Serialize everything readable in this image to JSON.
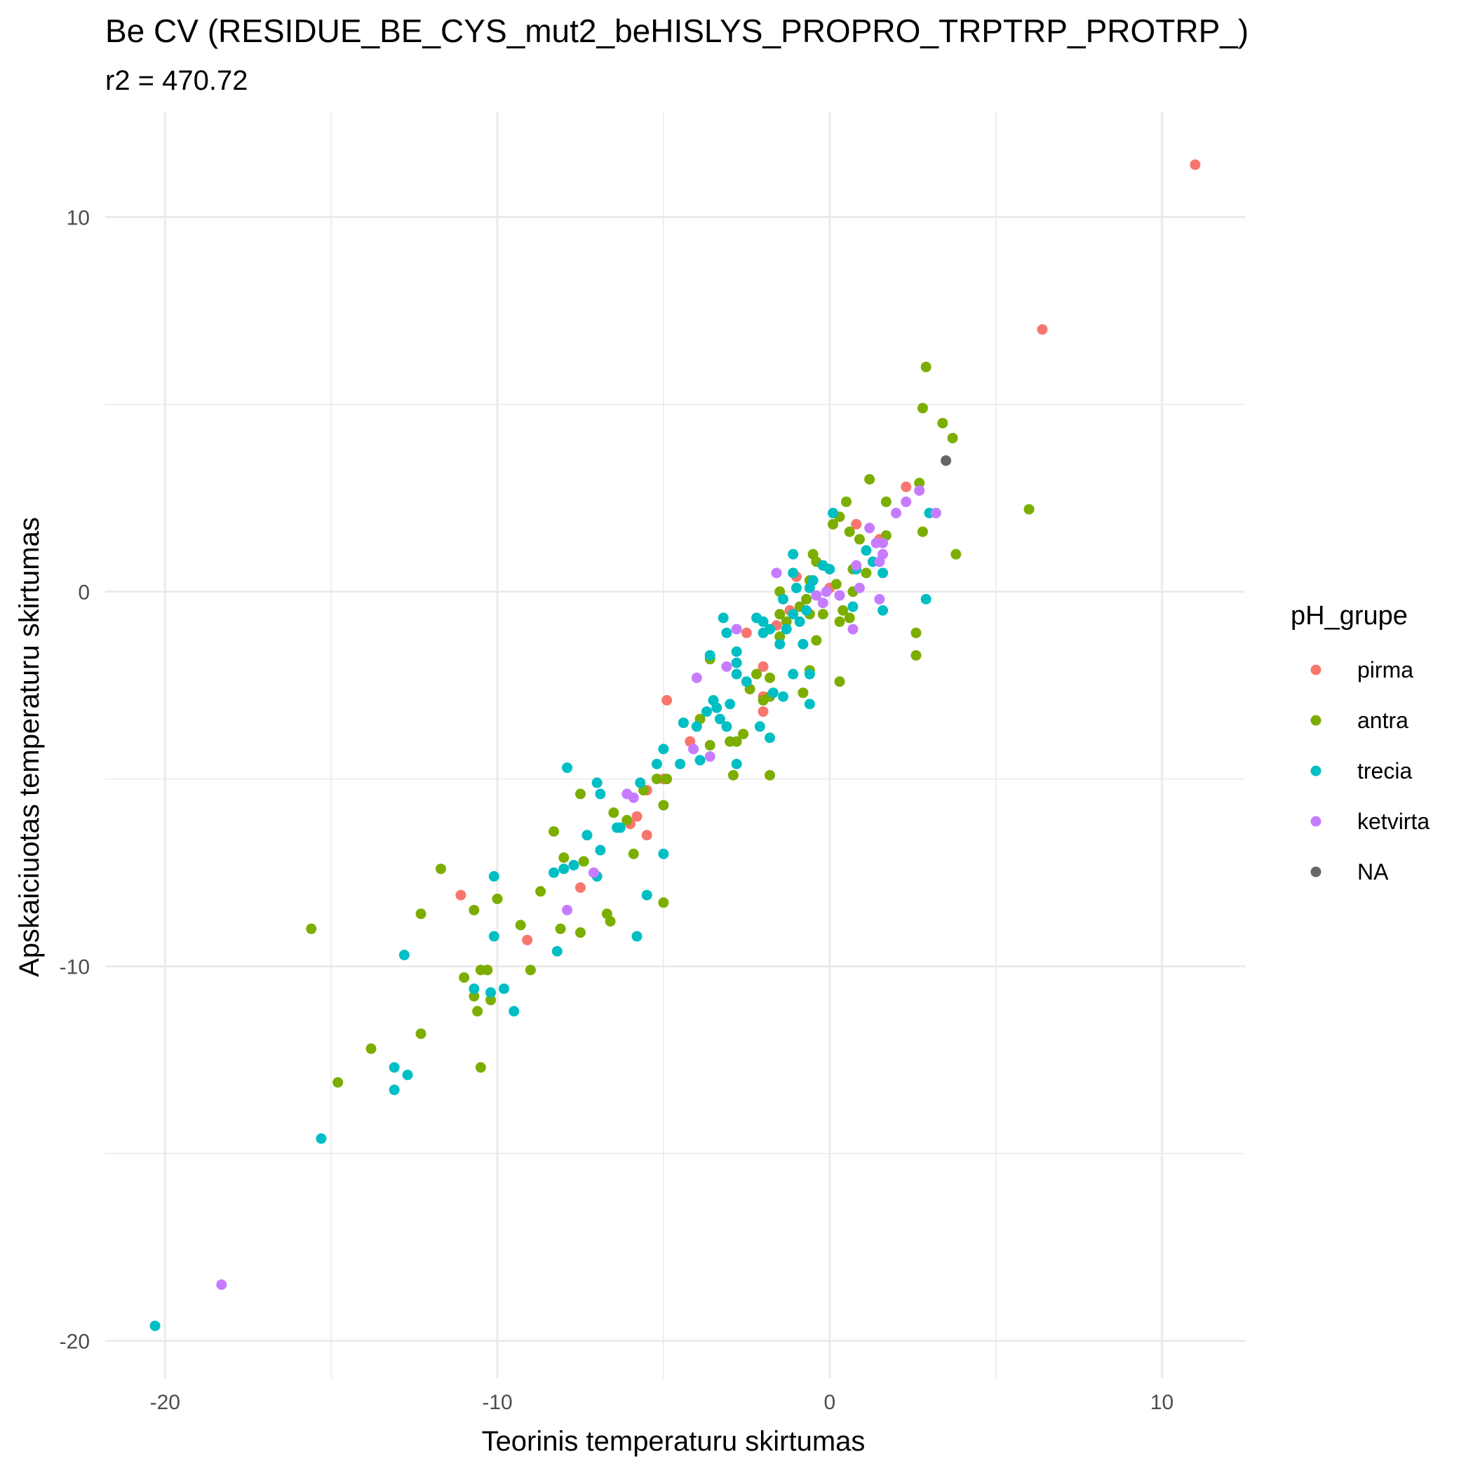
{
  "chart_data": {
    "type": "scatter",
    "title": "Be CV (RESIDUE_BE_CYS_mut2_beHISLYS_PROPRO_TRPTRP_PROTRP_)",
    "subtitle": "r2 = 470.72",
    "xlabel": "Teorinis temperaturu skirtumas",
    "ylabel": "Apskaiciuotas temperaturu skirtumas",
    "xlim": [
      -21.8,
      12.5
    ],
    "ylim": [
      -21.0,
      12.8
    ],
    "x_ticks": [
      -20,
      -10,
      0,
      10
    ],
    "x_tick_labels": [
      "-20",
      "-10",
      "0",
      "10"
    ],
    "y_ticks": [
      -20,
      -10,
      0,
      10
    ],
    "y_tick_labels": [
      "-20",
      "-10",
      "0",
      "10"
    ],
    "grid": true,
    "legend": {
      "title": "pH_grupe",
      "position": "right",
      "entries": [
        "pirma",
        "antra",
        "trecia",
        "ketvirta",
        "NA"
      ]
    },
    "series": [
      {
        "name": "pirma",
        "color": "#F8766D",
        "points": [
          [
            11.0,
            11.4
          ],
          [
            6.4,
            7.0
          ],
          [
            2.3,
            2.8
          ],
          [
            0.8,
            1.8
          ],
          [
            1.5,
            1.4
          ],
          [
            -1.0,
            0.4
          ],
          [
            0.0,
            0.1
          ],
          [
            -1.6,
            -0.9
          ],
          [
            -2.5,
            -1.1
          ],
          [
            -1.2,
            -0.5
          ],
          [
            -2.0,
            -2.0
          ],
          [
            -2.0,
            -2.8
          ],
          [
            -2.0,
            -3.2
          ],
          [
            -4.9,
            -2.9
          ],
          [
            -4.2,
            -4.0
          ],
          [
            -5.0,
            -5.0
          ],
          [
            -5.5,
            -5.3
          ],
          [
            -6.0,
            -6.2
          ],
          [
            -5.8,
            -6.0
          ],
          [
            -5.5,
            -6.5
          ],
          [
            -7.5,
            -7.9
          ],
          [
            -11.1,
            -8.1
          ],
          [
            -9.1,
            -9.3
          ]
        ]
      },
      {
        "name": "antra",
        "color": "#7CAE00",
        "points": [
          [
            2.9,
            6.0
          ],
          [
            2.8,
            4.9
          ],
          [
            3.4,
            4.5
          ],
          [
            3.7,
            4.1
          ],
          [
            6.0,
            2.2
          ],
          [
            3.8,
            1.0
          ],
          [
            1.2,
            3.0
          ],
          [
            2.7,
            2.9
          ],
          [
            1.7,
            2.4
          ],
          [
            0.5,
            2.4
          ],
          [
            0.3,
            2.0
          ],
          [
            0.1,
            1.8
          ],
          [
            0.6,
            1.6
          ],
          [
            0.9,
            1.4
          ],
          [
            2.8,
            1.6
          ],
          [
            1.7,
            1.5
          ],
          [
            -0.5,
            1.0
          ],
          [
            -0.4,
            0.8
          ],
          [
            0.7,
            0.6
          ],
          [
            1.1,
            0.5
          ],
          [
            -0.6,
            0.3
          ],
          [
            0.2,
            0.2
          ],
          [
            0.7,
            0.0
          ],
          [
            -1.5,
            0.0
          ],
          [
            -0.7,
            -0.2
          ],
          [
            -0.9,
            -0.4
          ],
          [
            0.4,
            -0.5
          ],
          [
            -0.6,
            -0.6
          ],
          [
            -1.5,
            -0.6
          ],
          [
            0.6,
            -0.7
          ],
          [
            0.3,
            -0.8
          ],
          [
            -1.3,
            -0.8
          ],
          [
            -0.2,
            -0.6
          ],
          [
            2.6,
            -1.1
          ],
          [
            -1.5,
            -1.2
          ],
          [
            -0.4,
            -1.3
          ],
          [
            2.6,
            -1.7
          ],
          [
            -3.6,
            -1.8
          ],
          [
            -0.6,
            -2.1
          ],
          [
            -2.2,
            -2.2
          ],
          [
            -1.8,
            -2.3
          ],
          [
            0.3,
            -2.4
          ],
          [
            -2.4,
            -2.6
          ],
          [
            -1.8,
            -2.8
          ],
          [
            -0.8,
            -2.7
          ],
          [
            -2.0,
            -2.9
          ],
          [
            -4.4,
            -3.5
          ],
          [
            -3.9,
            -3.4
          ],
          [
            -2.6,
            -3.8
          ],
          [
            -3.6,
            -4.1
          ],
          [
            -3.0,
            -4.0
          ],
          [
            -2.8,
            -4.0
          ],
          [
            -1.8,
            -4.9
          ],
          [
            -2.9,
            -4.9
          ],
          [
            -5.2,
            -5.0
          ],
          [
            -4.9,
            -5.0
          ],
          [
            -5.6,
            -5.3
          ],
          [
            -5.0,
            -5.7
          ],
          [
            -7.5,
            -5.4
          ],
          [
            -6.5,
            -5.9
          ],
          [
            -6.1,
            -6.1
          ],
          [
            -8.3,
            -6.4
          ],
          [
            -7.4,
            -7.2
          ],
          [
            -5.9,
            -7.0
          ],
          [
            -8.0,
            -7.1
          ],
          [
            -11.7,
            -7.4
          ],
          [
            -8.7,
            -8.0
          ],
          [
            -5.0,
            -8.3
          ],
          [
            -10.7,
            -8.5
          ],
          [
            -6.7,
            -8.6
          ],
          [
            -12.3,
            -8.6
          ],
          [
            -10.0,
            -8.2
          ],
          [
            -9.3,
            -8.9
          ],
          [
            -6.6,
            -8.8
          ],
          [
            -8.1,
            -9.0
          ],
          [
            -15.6,
            -9.0
          ],
          [
            -7.5,
            -9.1
          ],
          [
            -9.0,
            -10.1
          ],
          [
            -10.5,
            -10.1
          ],
          [
            -11.0,
            -10.3
          ],
          [
            -10.3,
            -10.1
          ],
          [
            -10.2,
            -10.9
          ],
          [
            -10.7,
            -10.8
          ],
          [
            -10.6,
            -11.2
          ],
          [
            -13.8,
            -12.2
          ],
          [
            -12.3,
            -11.8
          ],
          [
            -10.5,
            -12.7
          ],
          [
            -14.8,
            -13.1
          ]
        ]
      },
      {
        "name": "trecia",
        "color": "#00BFC4",
        "points": [
          [
            0.1,
            2.1
          ],
          [
            3.0,
            2.1
          ],
          [
            1.1,
            1.1
          ],
          [
            1.3,
            0.8
          ],
          [
            0.8,
            0.6
          ],
          [
            1.6,
            0.5
          ],
          [
            -0.2,
            0.7
          ],
          [
            0.0,
            0.6
          ],
          [
            -1.1,
            1.0
          ],
          [
            -1.1,
            0.5
          ],
          [
            -0.5,
            0.3
          ],
          [
            -1.0,
            0.1
          ],
          [
            -0.6,
            0.1
          ],
          [
            2.9,
            -0.2
          ],
          [
            -1.4,
            -0.2
          ],
          [
            0.7,
            -0.4
          ],
          [
            1.6,
            -0.5
          ],
          [
            -0.7,
            -0.5
          ],
          [
            -1.1,
            -0.6
          ],
          [
            -0.9,
            -0.8
          ],
          [
            -3.2,
            -0.7
          ],
          [
            -2.2,
            -0.7
          ],
          [
            -2.0,
            -0.8
          ],
          [
            -1.8,
            -1.0
          ],
          [
            -1.3,
            -1.0
          ],
          [
            -2.8,
            -1.6
          ],
          [
            -3.6,
            -1.7
          ],
          [
            -3.1,
            -1.1
          ],
          [
            -2.0,
            -1.1
          ],
          [
            -0.8,
            -1.4
          ],
          [
            -1.5,
            -1.4
          ],
          [
            -2.8,
            -1.9
          ],
          [
            -2.8,
            -2.2
          ],
          [
            -0.6,
            -2.2
          ],
          [
            -1.1,
            -2.2
          ],
          [
            -2.5,
            -2.4
          ],
          [
            -1.7,
            -2.7
          ],
          [
            -1.4,
            -2.8
          ],
          [
            -0.6,
            -3.0
          ],
          [
            -3.5,
            -2.9
          ],
          [
            -3.4,
            -3.1
          ],
          [
            -3.7,
            -3.2
          ],
          [
            -3.0,
            -3.0
          ],
          [
            -3.3,
            -3.4
          ],
          [
            -4.4,
            -3.5
          ],
          [
            -3.1,
            -3.6
          ],
          [
            -4.0,
            -3.6
          ],
          [
            -2.1,
            -3.6
          ],
          [
            -1.8,
            -3.9
          ],
          [
            -3.9,
            -4.5
          ],
          [
            -5.0,
            -4.2
          ],
          [
            -5.2,
            -4.6
          ],
          [
            -4.5,
            -4.6
          ],
          [
            -2.8,
            -4.6
          ],
          [
            -7.9,
            -4.7
          ],
          [
            -7.0,
            -5.1
          ],
          [
            -5.7,
            -5.1
          ],
          [
            -6.9,
            -5.4
          ],
          [
            -6.3,
            -6.3
          ],
          [
            -6.4,
            -6.3
          ],
          [
            -7.3,
            -6.5
          ],
          [
            -6.9,
            -6.9
          ],
          [
            -5.0,
            -7.0
          ],
          [
            -8.0,
            -7.4
          ],
          [
            -8.3,
            -7.5
          ],
          [
            -7.7,
            -7.3
          ],
          [
            -7.0,
            -7.6
          ],
          [
            -10.1,
            -7.6
          ],
          [
            -5.5,
            -8.1
          ],
          [
            -5.8,
            -9.2
          ],
          [
            -10.1,
            -9.2
          ],
          [
            -8.2,
            -9.6
          ],
          [
            -12.8,
            -9.7
          ],
          [
            -10.7,
            -10.6
          ],
          [
            -10.2,
            -10.7
          ],
          [
            -9.8,
            -10.6
          ],
          [
            -9.5,
            -11.2
          ],
          [
            -13.1,
            -12.7
          ],
          [
            -12.7,
            -12.9
          ],
          [
            -13.1,
            -13.3
          ],
          [
            -15.3,
            -14.6
          ],
          [
            -20.3,
            -19.6
          ]
        ]
      },
      {
        "name": "ketvirta",
        "color": "#C77CFF",
        "points": [
          [
            3.2,
            2.1
          ],
          [
            2.7,
            2.7
          ],
          [
            2.3,
            2.4
          ],
          [
            2.0,
            2.1
          ],
          [
            1.2,
            1.7
          ],
          [
            1.4,
            1.3
          ],
          [
            1.6,
            1.3
          ],
          [
            1.6,
            1.0
          ],
          [
            1.5,
            0.8
          ],
          [
            0.8,
            0.7
          ],
          [
            -1.6,
            0.5
          ],
          [
            0.9,
            0.1
          ],
          [
            -0.1,
            0.0
          ],
          [
            0.3,
            -0.1
          ],
          [
            -0.4,
            -0.1
          ],
          [
            1.5,
            -0.2
          ],
          [
            -0.2,
            -0.3
          ],
          [
            0.7,
            -1.0
          ],
          [
            -2.8,
            -1.0
          ],
          [
            -3.1,
            -2.0
          ],
          [
            -4.0,
            -2.3
          ],
          [
            -4.1,
            -4.2
          ],
          [
            -3.6,
            -4.4
          ],
          [
            -6.1,
            -5.4
          ],
          [
            -5.9,
            -5.5
          ],
          [
            -7.1,
            -7.5
          ],
          [
            -7.9,
            -8.5
          ],
          [
            -18.3,
            -18.5
          ]
        ]
      },
      {
        "name": "NA",
        "color": "#666666",
        "points": [
          [
            3.5,
            3.5
          ]
        ]
      }
    ]
  }
}
